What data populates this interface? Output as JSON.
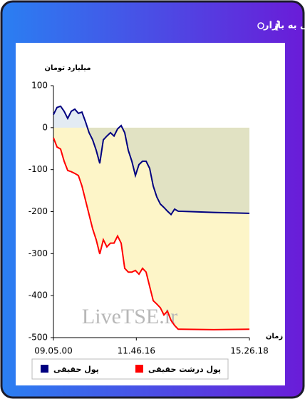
{
  "header": {
    "title": "برآیند ورود و خروج پول حقیقی و پول درشت حقیقی به بازار"
  },
  "chart_data": {
    "type": "line",
    "ylabel": "میلیارد تومان",
    "xlabel": "زمان",
    "watermark": "LiveTSE.ir",
    "x": [
      32700,
      33116,
      33532,
      33948,
      34364,
      34780,
      35196,
      35612,
      36028,
      36444,
      36860,
      37276,
      37692,
      38108,
      38524,
      38940,
      39356,
      39772,
      40188,
      40604,
      41020,
      41436,
      41852,
      42268,
      42684,
      43100,
      43516,
      43932,
      44348,
      44764,
      45180,
      45596,
      46012,
      46428,
      46844,
      47260,
      51418,
      55578
    ],
    "series": [
      {
        "name": "پول حقیقی",
        "color": "#000080",
        "values": [
          31,
          48,
          51,
          39,
          22,
          39,
          44,
          34,
          37,
          14,
          -12,
          -29,
          -54,
          -85,
          -29,
          -20,
          -12,
          -20,
          -3,
          5,
          -12,
          -54,
          -80,
          -114,
          -88,
          -80,
          -80,
          -97,
          -139,
          -165,
          -182,
          -190,
          -199,
          -207,
          -194,
          -199,
          -202,
          -204
        ]
      },
      {
        "name": "پول درشت حقیقی",
        "color": "#ff0000",
        "values": [
          -24,
          -46,
          -51,
          -80,
          -102,
          -105,
          -109,
          -114,
          -139,
          -173,
          -207,
          -241,
          -267,
          -301,
          -267,
          -284,
          -275,
          -275,
          -258,
          -275,
          -335,
          -344,
          -344,
          -340,
          -349,
          -335,
          -344,
          -378,
          -412,
          -420,
          -429,
          -446,
          -437,
          -459,
          -471,
          -480,
          -481,
          -480
        ]
      }
    ],
    "xlim": [
      32700,
      55578
    ],
    "xticks": [
      {
        "value": 32700,
        "label": "09.05.00"
      },
      {
        "value": 42376,
        "label": "11.46.16"
      },
      {
        "value": 55578,
        "label": "15.26.18"
      }
    ],
    "ylim": [
      -500,
      100
    ],
    "yticks": [
      -500,
      -400,
      -300,
      -200,
      -100,
      0,
      100
    ],
    "grid": false
  }
}
